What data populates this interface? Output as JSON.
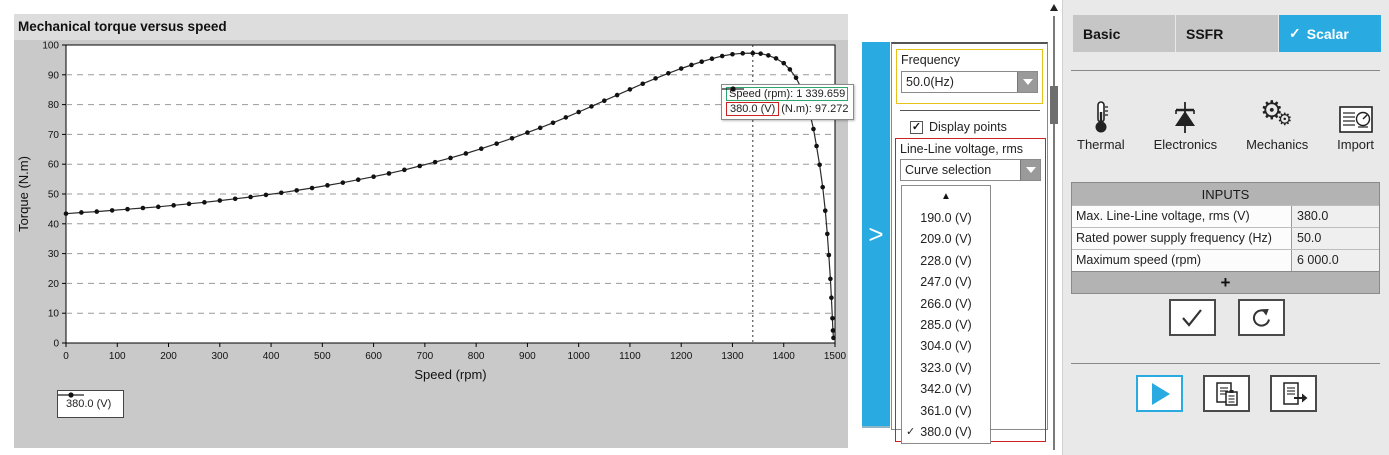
{
  "chart": {
    "title": "Mechanical torque versus speed",
    "legend_label": "380.0 (V)",
    "tooltip": {
      "speed_text": "Speed (rpm): 1 339.659",
      "series_label": "380.0 (V)",
      "value_text": "(N.m): 97.272"
    }
  },
  "chart_data": {
    "type": "line",
    "title": "Mechanical torque versus speed",
    "xlabel": "Speed (rpm)",
    "ylabel": "Torque (N.m)",
    "xlim": [
      0,
      1500
    ],
    "ylim": [
      0,
      100
    ],
    "x_ticks": [
      0,
      100,
      200,
      300,
      400,
      500,
      600,
      700,
      800,
      900,
      1000,
      1100,
      1200,
      1300,
      1400,
      1500
    ],
    "y_ticks": [
      0,
      10,
      20,
      30,
      40,
      50,
      60,
      70,
      80,
      90,
      100
    ],
    "grid": "horizontal-dashed",
    "legend_position": "bottom-left",
    "crosshair_x": 1339.659,
    "marked_point": {
      "x": 1339.659,
      "y": 97.272
    },
    "series": [
      {
        "name": "380.0 (V)",
        "points": [
          [
            0,
            43.4
          ],
          [
            30,
            43.8
          ],
          [
            60,
            44.1
          ],
          [
            90,
            44.5
          ],
          [
            120,
            44.9
          ],
          [
            150,
            45.3
          ],
          [
            180,
            45.7
          ],
          [
            210,
            46.2
          ],
          [
            240,
            46.7
          ],
          [
            270,
            47.2
          ],
          [
            300,
            47.8
          ],
          [
            330,
            48.4
          ],
          [
            360,
            49.0
          ],
          [
            390,
            49.7
          ],
          [
            420,
            50.4
          ],
          [
            450,
            51.2
          ],
          [
            480,
            52.0
          ],
          [
            510,
            52.9
          ],
          [
            540,
            53.8
          ],
          [
            570,
            54.8
          ],
          [
            600,
            55.8
          ],
          [
            630,
            56.9
          ],
          [
            660,
            58.1
          ],
          [
            690,
            59.4
          ],
          [
            720,
            60.7
          ],
          [
            750,
            62.1
          ],
          [
            780,
            63.6
          ],
          [
            810,
            65.2
          ],
          [
            840,
            66.9
          ],
          [
            870,
            68.7
          ],
          [
            900,
            70.6
          ],
          [
            925,
            72.2
          ],
          [
            950,
            73.9
          ],
          [
            975,
            75.7
          ],
          [
            1000,
            77.5
          ],
          [
            1025,
            79.4
          ],
          [
            1050,
            81.3
          ],
          [
            1075,
            83.2
          ],
          [
            1100,
            85.1
          ],
          [
            1125,
            87.0
          ],
          [
            1150,
            88.8
          ],
          [
            1175,
            90.5
          ],
          [
            1200,
            92.1
          ],
          [
            1220,
            93.3
          ],
          [
            1240,
            94.4
          ],
          [
            1260,
            95.4
          ],
          [
            1280,
            96.3
          ],
          [
            1300,
            96.9
          ],
          [
            1320,
            97.2
          ],
          [
            1339.659,
            97.272
          ],
          [
            1355,
            97.1
          ],
          [
            1370,
            96.5
          ],
          [
            1385,
            95.5
          ],
          [
            1400,
            93.9
          ],
          [
            1412,
            91.8
          ],
          [
            1424,
            89.0
          ],
          [
            1434,
            85.6
          ],
          [
            1443,
            81.6
          ],
          [
            1451,
            77.0
          ],
          [
            1458,
            71.8
          ],
          [
            1464,
            66.1
          ],
          [
            1470,
            59.8
          ],
          [
            1476,
            52.3
          ],
          [
            1481,
            44.4
          ],
          [
            1485,
            36.6
          ],
          [
            1488,
            29.5
          ],
          [
            1491,
            21.5
          ],
          [
            1493,
            15.2
          ],
          [
            1495,
            8.3
          ],
          [
            1496,
            4.2
          ],
          [
            1497,
            1.7
          ]
        ]
      }
    ]
  },
  "middle_panel": {
    "expander_glyph": ">",
    "frequency_label": "Frequency",
    "frequency_value": "50.0(Hz)",
    "display_points_label": "Display points",
    "display_points_checked": true,
    "voltage_label": "Line-Line voltage, rms",
    "voltage_dropdown_text": "Curve selection",
    "scroll_up_glyph": "▲",
    "voltage_options": [
      {
        "label": "190.0 (V)",
        "selected": false
      },
      {
        "label": "209.0 (V)",
        "selected": false
      },
      {
        "label": "228.0 (V)",
        "selected": false
      },
      {
        "label": "247.0 (V)",
        "selected": false
      },
      {
        "label": "266.0 (V)",
        "selected": false
      },
      {
        "label": "285.0 (V)",
        "selected": false
      },
      {
        "label": "304.0 (V)",
        "selected": false
      },
      {
        "label": "323.0 (V)",
        "selected": false
      },
      {
        "label": "342.0 (V)",
        "selected": false
      },
      {
        "label": "361.0 (V)",
        "selected": false
      },
      {
        "label": "380.0 (V)",
        "selected": true
      }
    ]
  },
  "right_panel": {
    "tabs": [
      {
        "label": "Basic",
        "active": false
      },
      {
        "label": "SSFR",
        "active": false
      },
      {
        "label": "Scalar",
        "active": true
      }
    ],
    "tab_check_glyph": "✓",
    "toolbar": [
      {
        "label": "Thermal"
      },
      {
        "label": "Electronics"
      },
      {
        "label": "Mechanics"
      },
      {
        "label": "Import"
      }
    ],
    "gear_glyph": "⚙",
    "inputs": {
      "header": "INPUTS",
      "rows": [
        {
          "label": "Max. Line-Line voltage, rms (V)",
          "value": "380.0",
          "highlight": "red"
        },
        {
          "label": "Rated power supply frequency (Hz)",
          "value": "50.0",
          "highlight": "yellow"
        },
        {
          "label": "Maximum speed (rpm)",
          "value": "6 000.0",
          "highlight": "none"
        }
      ],
      "add_label": "+"
    },
    "check_glyph": "✓"
  },
  "colors": {
    "accent_blue": "#29ABE2",
    "highlight_red": "#cc2222",
    "highlight_yellow": "#e6c21a",
    "highlight_green": "#2fa56f",
    "chart_background": "#c9c9c9"
  }
}
